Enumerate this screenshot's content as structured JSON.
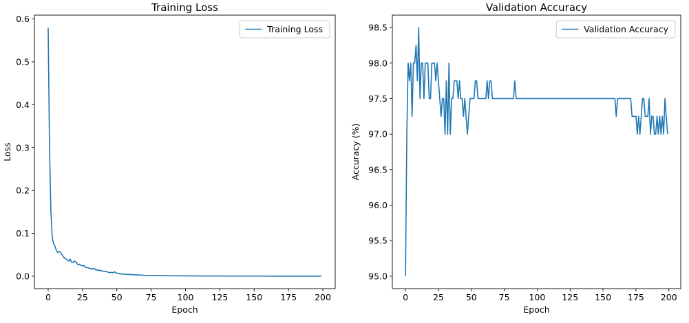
{
  "colors": {
    "line": "#1f77b4",
    "legend_border": "#cccccc",
    "axis": "#000000"
  },
  "chart_data": [
    {
      "type": "line",
      "title": "Training Loss",
      "xlabel": "Epoch",
      "ylabel": "Loss",
      "xlim": [
        -10,
        209
      ],
      "ylim": [
        -0.029,
        0.609
      ],
      "xticks": [
        0,
        25,
        50,
        75,
        100,
        125,
        150,
        175,
        200
      ],
      "xtick_labels": [
        "0",
        "25",
        "50",
        "75",
        "100",
        "125",
        "150",
        "175",
        "200"
      ],
      "yticks": [
        0.0,
        0.1,
        0.2,
        0.3,
        0.4,
        0.5,
        0.6
      ],
      "ytick_labels": [
        "0.0",
        "0.1",
        "0.2",
        "0.3",
        "0.4",
        "0.5",
        "0.6"
      ],
      "grid": false,
      "legend_position": "top-right",
      "series": [
        {
          "name": "Training Loss",
          "x": [
            0,
            1,
            2,
            3,
            4,
            5,
            6,
            7,
            8,
            9,
            10,
            11,
            12,
            13,
            14,
            15,
            16,
            17,
            18,
            19,
            20,
            21,
            22,
            23,
            24,
            25,
            26,
            27,
            28,
            29,
            30,
            31,
            32,
            33,
            34,
            35,
            36,
            37,
            38,
            39,
            40,
            41,
            42,
            43,
            44,
            45,
            46,
            47,
            48,
            49,
            50,
            52,
            54,
            56,
            58,
            60,
            62,
            64,
            66,
            68,
            70,
            75,
            80,
            85,
            90,
            95,
            100,
            110,
            120,
            130,
            140,
            150,
            160,
            170,
            180,
            190,
            199
          ],
          "y": [
            0.58,
            0.3,
            0.15,
            0.09,
            0.075,
            0.07,
            0.06,
            0.055,
            0.058,
            0.056,
            0.05,
            0.046,
            0.042,
            0.04,
            0.038,
            0.035,
            0.04,
            0.033,
            0.032,
            0.035,
            0.034,
            0.03,
            0.026,
            0.028,
            0.025,
            0.024,
            0.025,
            0.021,
            0.02,
            0.02,
            0.018,
            0.018,
            0.016,
            0.018,
            0.017,
            0.014,
            0.015,
            0.013,
            0.014,
            0.012,
            0.012,
            0.011,
            0.011,
            0.01,
            0.009,
            0.008,
            0.009,
            0.008,
            0.01,
            0.009,
            0.007,
            0.006,
            0.005,
            0.005,
            0.004,
            0.004,
            0.0035,
            0.003,
            0.003,
            0.0025,
            0.002,
            0.0018,
            0.0015,
            0.0012,
            0.001,
            0.0009,
            0.0008,
            0.0006,
            0.0005,
            0.0004,
            0.0003,
            0.0003,
            0.0002,
            0.0002,
            0.0002,
            0.0001,
            0.0001
          ]
        }
      ]
    },
    {
      "type": "line",
      "title": "Validation Accuracy",
      "xlabel": "Epoch",
      "ylabel": "Accuracy (%)",
      "xlim": [
        -10,
        209
      ],
      "ylim": [
        94.825,
        98.675
      ],
      "xticks": [
        0,
        25,
        50,
        75,
        100,
        125,
        150,
        175,
        200
      ],
      "xtick_labels": [
        "0",
        "25",
        "50",
        "75",
        "100",
        "125",
        "150",
        "175",
        "200"
      ],
      "yticks": [
        95.0,
        95.5,
        96.0,
        96.5,
        97.0,
        97.5,
        98.0,
        98.5
      ],
      "ytick_labels": [
        "95.0",
        "95.5",
        "96.0",
        "96.5",
        "97.0",
        "97.5",
        "98.0",
        "98.5"
      ],
      "grid": false,
      "legend_position": "top-right",
      "series": [
        {
          "name": "Validation Accuracy",
          "x": [
            0,
            1,
            2,
            3,
            4,
            5,
            6,
            7,
            8,
            9,
            10,
            11,
            12,
            13,
            14,
            15,
            16,
            17,
            18,
            19,
            20,
            21,
            22,
            23,
            24,
            25,
            26,
            27,
            28,
            29,
            30,
            31,
            32,
            33,
            34,
            35,
            36,
            37,
            38,
            39,
            40,
            41,
            42,
            43,
            44,
            45,
            46,
            47,
            48,
            49,
            50,
            51,
            52,
            53,
            54,
            55,
            56,
            57,
            58,
            59,
            60,
            61,
            62,
            63,
            64,
            65,
            66,
            67,
            68,
            69,
            70,
            71,
            72,
            73,
            74,
            75,
            76,
            77,
            78,
            79,
            80,
            81,
            82,
            83,
            84,
            85,
            86,
            87,
            88,
            89,
            90,
            100,
            110,
            120,
            130,
            140,
            150,
            158,
            159,
            160,
            161,
            162,
            163,
            164,
            165,
            166,
            167,
            168,
            169,
            170,
            171,
            172,
            173,
            174,
            175,
            176,
            177,
            178,
            179,
            180,
            181,
            182,
            183,
            184,
            185,
            186,
            187,
            188,
            189,
            190,
            191,
            192,
            193,
            194,
            195,
            196,
            197,
            198,
            199
          ],
          "y": [
            95.0,
            97.0,
            98.0,
            97.75,
            98.0,
            97.25,
            98.0,
            98.0,
            98.25,
            97.75,
            98.5,
            97.5,
            98.0,
            98.0,
            97.5,
            98.0,
            98.0,
            98.0,
            97.5,
            97.5,
            98.0,
            98.0,
            98.0,
            97.75,
            98.0,
            97.75,
            97.5,
            97.25,
            97.5,
            97.5,
            97.0,
            97.75,
            97.0,
            98.0,
            97.0,
            97.5,
            97.5,
            97.75,
            97.75,
            97.75,
            97.5,
            97.75,
            97.5,
            97.5,
            97.25,
            97.5,
            97.25,
            97.0,
            97.25,
            97.5,
            97.5,
            97.5,
            97.5,
            97.75,
            97.75,
            97.5,
            97.5,
            97.5,
            97.5,
            97.5,
            97.5,
            97.5,
            97.75,
            97.5,
            97.75,
            97.75,
            97.5,
            97.5,
            97.5,
            97.5,
            97.5,
            97.5,
            97.5,
            97.5,
            97.5,
            97.5,
            97.5,
            97.5,
            97.5,
            97.5,
            97.5,
            97.5,
            97.5,
            97.75,
            97.5,
            97.5,
            97.5,
            97.5,
            97.5,
            97.5,
            97.5,
            97.5,
            97.5,
            97.5,
            97.5,
            97.5,
            97.5,
            97.5,
            97.5,
            97.25,
            97.5,
            97.5,
            97.5,
            97.5,
            97.5,
            97.5,
            97.5,
            97.5,
            97.5,
            97.5,
            97.5,
            97.25,
            97.25,
            97.25,
            97.25,
            97.0,
            97.25,
            97.0,
            97.25,
            97.5,
            97.5,
            97.25,
            97.25,
            97.25,
            97.5,
            97.0,
            97.25,
            97.25,
            97.0,
            97.0,
            97.25,
            97.0,
            97.25,
            97.0,
            97.25,
            97.0,
            97.5,
            97.25,
            97.0
          ]
        }
      ]
    }
  ]
}
